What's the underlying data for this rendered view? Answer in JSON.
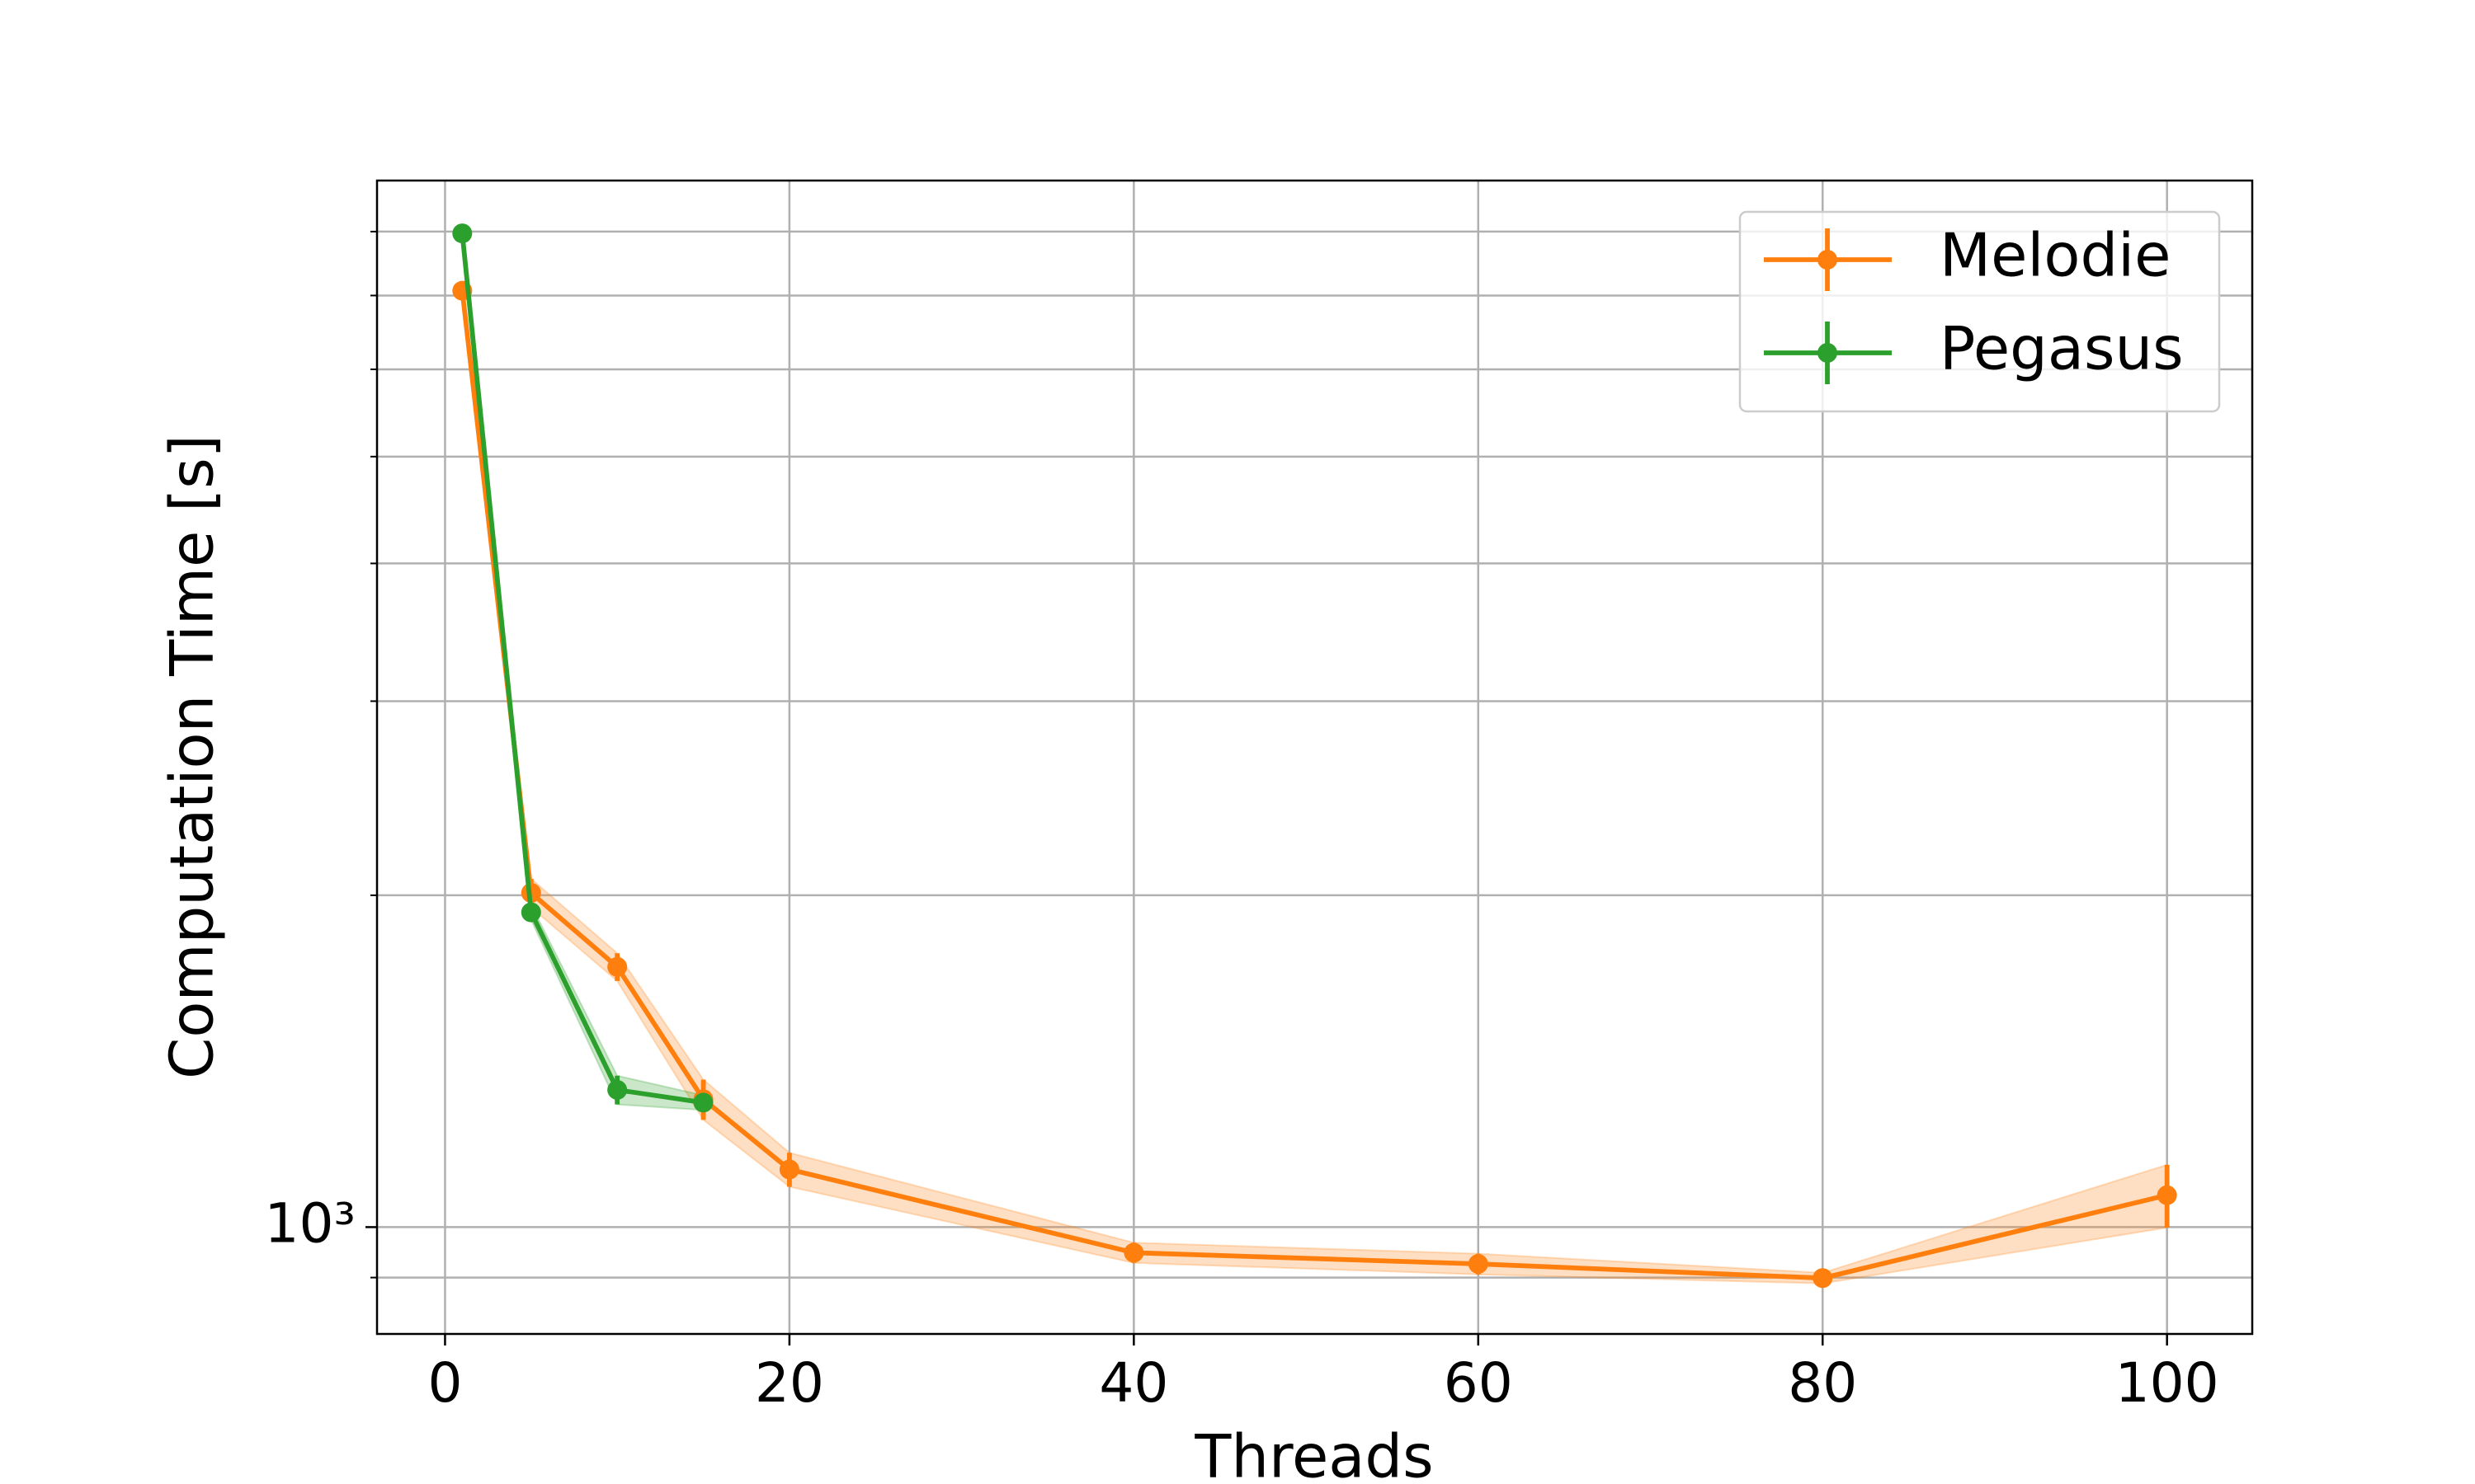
{
  "chart_data": {
    "type": "line",
    "xlabel": "Threads",
    "ylabel": "Computation Time [s]",
    "x": [
      1,
      5,
      10,
      15,
      20,
      40,
      60,
      80,
      100
    ],
    "series": [
      {
        "name": "Melodie",
        "color": "#ff7f0e",
        "x": [
          1,
          5,
          10,
          15,
          20,
          40,
          60,
          80,
          100
        ],
        "values": [
          7070,
          2010,
          1722,
          1306,
          1128,
          948,
          926,
          899,
          1069
        ],
        "errors": [
          20,
          60,
          50,
          55,
          40,
          20,
          20,
          10,
          70
        ]
      },
      {
        "name": "Pegasus",
        "color": "#2ca02c",
        "x": [
          1,
          5,
          10,
          15
        ],
        "values": [
          7970,
          1930,
          1332,
          1297
        ],
        "errors": [
          30,
          30,
          40,
          20
        ]
      }
    ],
    "xlim": [
      -3.95,
      104.95
    ],
    "xticks": [
      0,
      20,
      40,
      60,
      80,
      100
    ],
    "ylim": [
      800,
      8900
    ],
    "yticks": [
      {
        "value": 1000,
        "label": "10³"
      }
    ],
    "yminorticks": [
      900,
      2000,
      3000,
      4000,
      5000,
      6000,
      7000,
      8000
    ],
    "log_scale_y": true,
    "grid": true,
    "legend": "upper right"
  }
}
